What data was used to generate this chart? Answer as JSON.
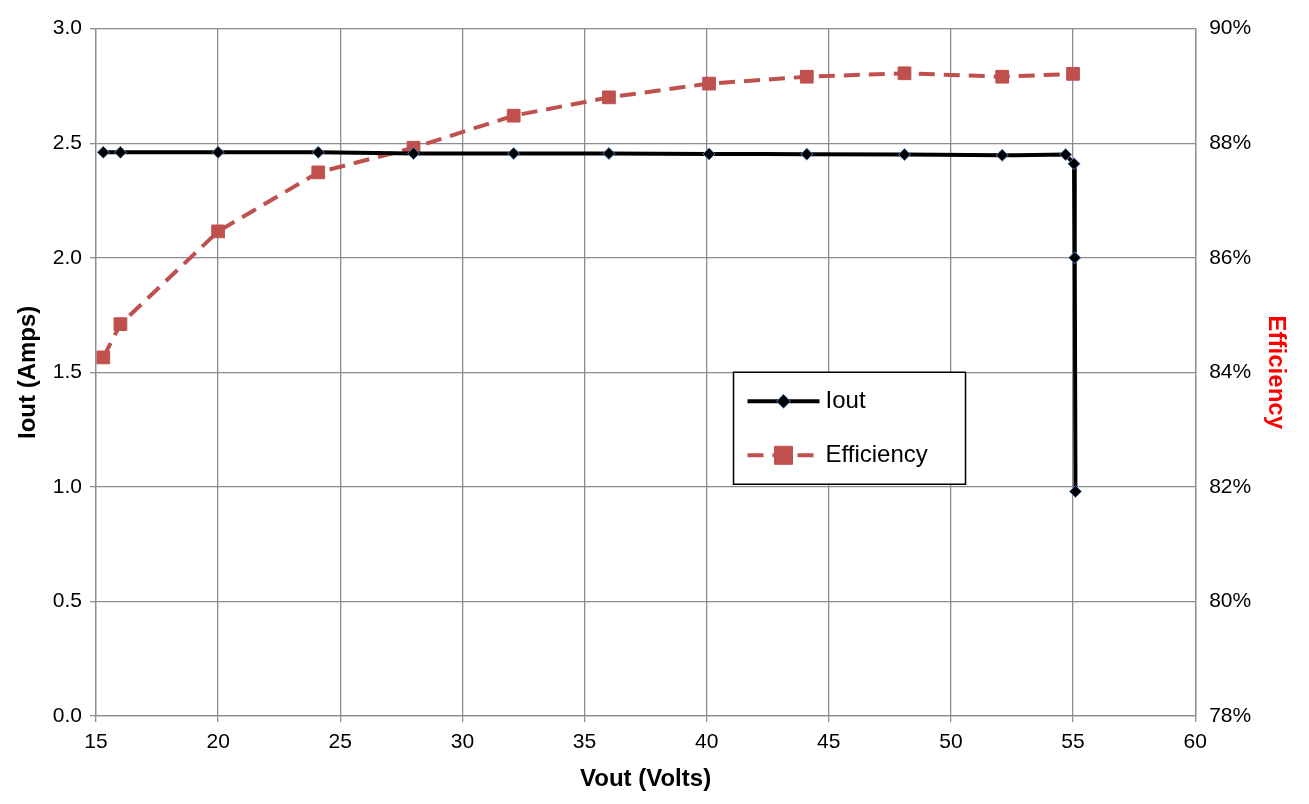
{
  "chart_data": {
    "type": "line",
    "xlabel": "Vout (Volts)",
    "ylabel": "Iout (Amps)",
    "y2label": "Efficiency",
    "xlim": [
      15,
      60
    ],
    "xticks": [
      15,
      20,
      25,
      30,
      35,
      40,
      45,
      50,
      55,
      60
    ],
    "ylim": [
      0,
      3
    ],
    "yticks": [
      {
        "value": 0,
        "label": "0.0"
      },
      {
        "value": 0.5,
        "label": "0.5"
      },
      {
        "value": 1,
        "label": "1.0"
      },
      {
        "value": 1.5,
        "label": "1.5"
      },
      {
        "value": 2,
        "label": "2.0"
      },
      {
        "value": 2.5,
        "label": "2.5"
      },
      {
        "value": 3,
        "label": "3.0"
      }
    ],
    "y2lim": [
      78,
      90
    ],
    "y2ticks": [
      {
        "value": 78,
        "label": "78%"
      },
      {
        "value": 80,
        "label": "80%"
      },
      {
        "value": 82,
        "label": "82%"
      },
      {
        "value": 84,
        "label": "84%"
      },
      {
        "value": 86,
        "label": "86%"
      },
      {
        "value": 88,
        "label": "88%"
      },
      {
        "value": 90,
        "label": "90%"
      }
    ],
    "grid": true,
    "legend": "right",
    "series": [
      {
        "name": "Iout",
        "color": "#000000",
        "marker": "diamond",
        "line_style": "solid",
        "x": [
          15.3,
          16,
          20,
          24.1,
          28,
          32.1,
          36,
          40.1,
          44.1,
          48.1,
          52.1,
          54.7,
          55.04,
          55.07,
          55.1
        ],
        "values": [
          2.46,
          2.46,
          2.46,
          2.46,
          2.455,
          2.455,
          2.455,
          2.453,
          2.452,
          2.45,
          2.447,
          2.45,
          2.41,
          2.0,
          0.98
        ]
      },
      {
        "name": "Efficiency",
        "color": "#c0504d",
        "marker": "square",
        "line_style": "dashed",
        "axis": "y2",
        "x": [
          15.3,
          16,
          20,
          24.1,
          28,
          32.1,
          36,
          40.1,
          44.1,
          48.1,
          52.1,
          55
        ],
        "values": [
          84.26,
          84.84,
          86.46,
          87.49,
          87.92,
          88.48,
          88.8,
          89.04,
          89.16,
          89.22,
          89.16,
          89.21
        ]
      }
    ]
  }
}
